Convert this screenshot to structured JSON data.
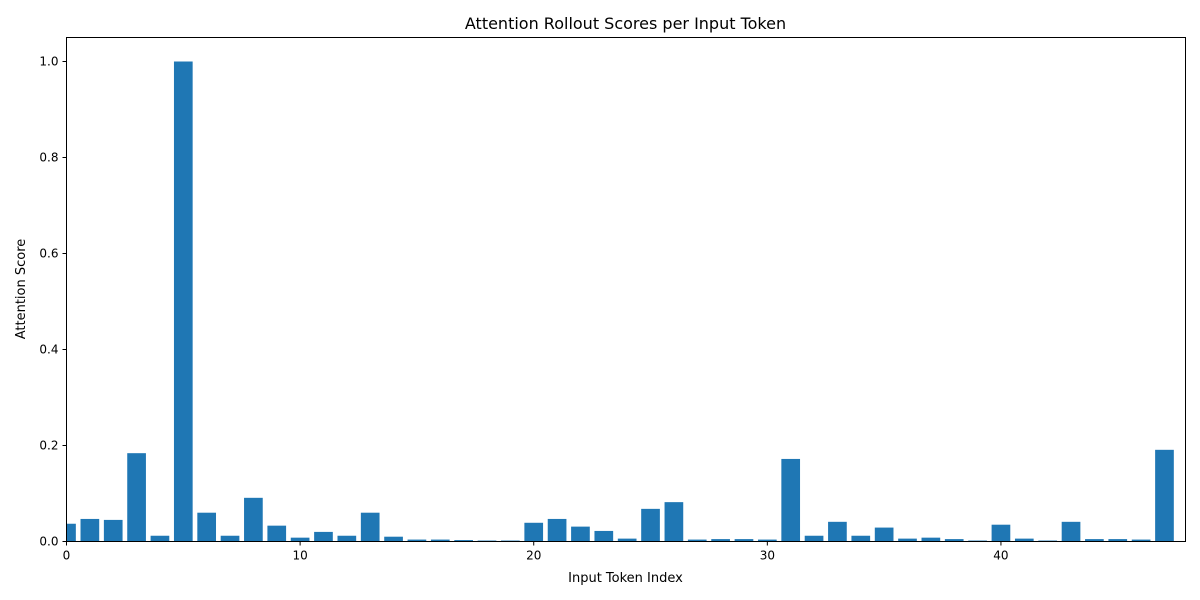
{
  "chart_data": {
    "type": "bar",
    "title": "Attention Rollout Scores per Input Token",
    "xlabel": "Input Token Index",
    "ylabel": "Attention Score",
    "xlim": [
      0,
      47.9
    ],
    "ylim": [
      0,
      1.05
    ],
    "xticks": [
      0,
      10,
      20,
      30,
      40
    ],
    "yticks": [
      0.0,
      0.2,
      0.4,
      0.6,
      0.8,
      1.0
    ],
    "ytick_labels": [
      "0.0",
      "0.2",
      "0.4",
      "0.6",
      "0.8",
      "1.0"
    ],
    "grid": false,
    "bar_color": "#1f77b4",
    "x": [
      0,
      1,
      2,
      3,
      4,
      5,
      6,
      7,
      8,
      9,
      10,
      11,
      12,
      13,
      14,
      15,
      16,
      17,
      18,
      19,
      20,
      21,
      22,
      23,
      24,
      25,
      26,
      27,
      28,
      29,
      30,
      31,
      32,
      33,
      34,
      35,
      36,
      37,
      38,
      39,
      40,
      41,
      42,
      43,
      44,
      45,
      46,
      47
    ],
    "values": [
      0.037,
      0.047,
      0.045,
      0.184,
      0.012,
      1.0,
      0.06,
      0.012,
      0.091,
      0.033,
      0.008,
      0.02,
      0.012,
      0.06,
      0.01,
      0.004,
      0.004,
      0.003,
      0.002,
      0.002,
      0.039,
      0.047,
      0.031,
      0.022,
      0.006,
      0.068,
      0.082,
      0.004,
      0.005,
      0.005,
      0.004,
      0.172,
      0.012,
      0.041,
      0.012,
      0.029,
      0.006,
      0.008,
      0.005,
      0.002,
      0.035,
      0.006,
      0.002,
      0.041,
      0.005,
      0.005,
      0.004,
      0.191
    ]
  }
}
